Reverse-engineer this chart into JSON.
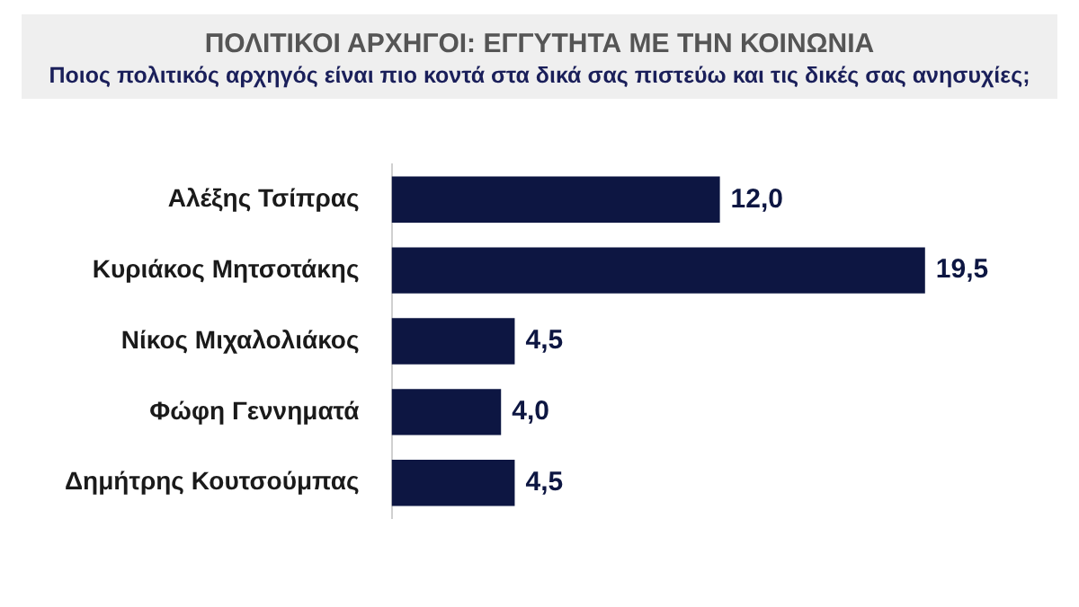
{
  "chart_data": {
    "type": "bar",
    "orientation": "horizontal",
    "title": "ΠΟΛΙΤΙΚΟΙ ΑΡΧΗΓΟΙ: ΕΓΓΥΤΗΤΑ ΜΕ ΤΗΝ ΚΟΙΝΩΝΙΑ",
    "subtitle": "Ποιος πολιτικός αρχηγός είναι πιο κοντά στα δικά σας πιστεύω και τις δικές σας ανησυχίες;",
    "categories": [
      "Αλέξης Τσίπρας",
      "Κυριάκος Μητσοτάκης",
      "Νίκος Μιχαλολιάκος",
      "Φώφη Γεννηματά",
      "Δημήτρης Κουτσούμπας"
    ],
    "values": [
      12.0,
      19.5,
      4.5,
      4.0,
      4.5
    ],
    "value_labels": [
      "12,0",
      "19,5",
      "4,5",
      "4,0",
      "4,5"
    ],
    "color": "#0d1642",
    "grid": false,
    "legend": false,
    "tick_labels": "y"
  }
}
